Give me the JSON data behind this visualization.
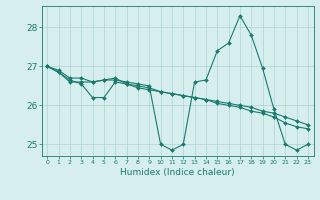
{
  "xlabel": "Humidex (Indice chaleur)",
  "xlim": [
    -0.5,
    23.5
  ],
  "ylim": [
    24.7,
    28.55
  ],
  "yticks": [
    25,
    26,
    27,
    28
  ],
  "xticks": [
    0,
    1,
    2,
    3,
    4,
    5,
    6,
    7,
    8,
    9,
    10,
    11,
    12,
    13,
    14,
    15,
    16,
    17,
    18,
    19,
    20,
    21,
    22,
    23
  ],
  "bg_color": "#d6eeee",
  "grid_color": "#aed4d4",
  "line_color": "#1a7a6e",
  "curves": [
    [
      27.0,
      26.9,
      26.7,
      26.7,
      26.6,
      26.65,
      26.65,
      26.6,
      26.55,
      26.5,
      25.0,
      24.85,
      25.0,
      26.6,
      26.65,
      27.4,
      27.6,
      28.3,
      27.8,
      26.95,
      25.9,
      25.0,
      24.85,
      25.0
    ],
    [
      27.0,
      26.85,
      26.65,
      26.55,
      26.2,
      26.2,
      26.6,
      26.55,
      26.45,
      26.4,
      26.35,
      26.3,
      26.25,
      26.2,
      26.15,
      26.05,
      26.0,
      25.95,
      25.85,
      25.8,
      25.7,
      25.55,
      25.45,
      25.4
    ],
    [
      27.0,
      26.85,
      26.6,
      26.6,
      26.6,
      26.65,
      26.7,
      26.55,
      26.5,
      26.45,
      26.35,
      26.3,
      26.25,
      26.2,
      26.15,
      26.1,
      26.05,
      26.0,
      25.95,
      25.85,
      25.8,
      25.7,
      25.6,
      25.5
    ]
  ]
}
